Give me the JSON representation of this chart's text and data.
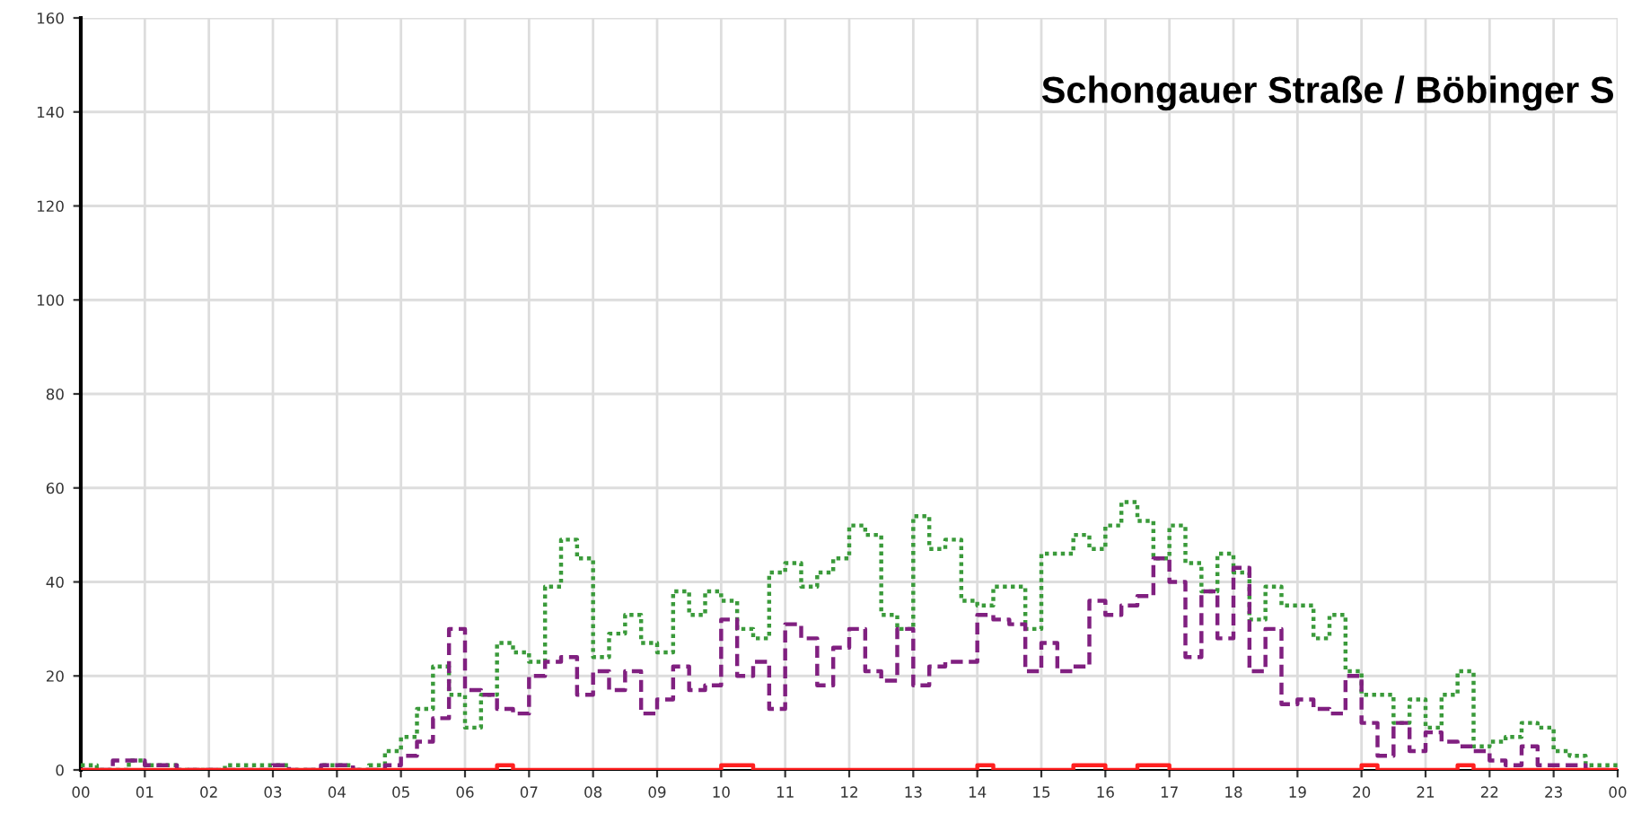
{
  "chart_data": {
    "type": "step",
    "title": "Schongauer Straße / Böbinger S",
    "x": [
      0,
      0.25,
      0.5,
      0.75,
      1,
      1.25,
      1.5,
      1.75,
      2,
      2.25,
      2.5,
      2.75,
      3,
      3.25,
      3.5,
      3.75,
      4,
      4.25,
      4.5,
      4.75,
      5,
      5.25,
      5.5,
      5.75,
      6,
      6.25,
      6.5,
      6.75,
      7,
      7.25,
      7.5,
      7.75,
      8,
      8.25,
      8.5,
      8.75,
      9,
      9.25,
      9.5,
      9.75,
      10,
      10.25,
      10.5,
      10.75,
      11,
      11.25,
      11.5,
      11.75,
      12,
      12.25,
      12.5,
      12.75,
      13,
      13.25,
      13.5,
      13.75,
      14,
      14.25,
      14.5,
      14.75,
      15,
      15.25,
      15.5,
      15.75,
      16,
      16.25,
      16.5,
      16.75,
      17,
      17.25,
      17.5,
      17.75,
      18,
      18.25,
      18.5,
      18.75,
      19,
      19.25,
      19.5,
      19.75,
      20,
      20.25,
      20.5,
      20.75,
      21,
      21.25,
      21.5,
      21.75,
      22,
      22.25,
      22.5,
      22.75,
      23,
      23.25,
      23.5,
      23.75,
      24
    ],
    "series": [
      {
        "color": "#3a9a3a",
        "line_style": "dotted",
        "values": [
          1,
          0,
          0,
          2,
          1,
          1,
          0,
          0,
          0,
          1,
          1,
          1,
          1,
          0,
          0,
          1,
          1,
          0,
          1,
          4,
          7,
          13,
          22,
          16,
          9,
          16,
          27,
          25,
          23,
          39,
          49,
          45,
          24,
          29,
          33,
          27,
          25,
          38,
          33,
          38,
          36,
          30,
          28,
          42,
          44,
          39,
          42,
          45,
          52,
          50,
          33,
          30,
          54,
          47,
          49,
          36,
          35,
          39,
          39,
          30,
          46,
          46,
          50,
          47,
          52,
          57,
          53,
          45,
          52,
          44,
          38,
          46,
          42,
          32,
          39,
          35,
          35,
          28,
          33,
          21,
          16,
          16,
          10,
          15,
          9,
          16,
          21,
          5,
          6,
          7,
          10,
          9,
          4,
          3,
          1,
          1,
          1
        ]
      },
      {
        "color": "#802080",
        "line_style": "dashed",
        "values": [
          0,
          0,
          2,
          2,
          1,
          1,
          0,
          0,
          0,
          0,
          0,
          0,
          1,
          0,
          0,
          1,
          1,
          0,
          0,
          1,
          3,
          6,
          11,
          30,
          17,
          16,
          13,
          12,
          20,
          23,
          24,
          16,
          21,
          17,
          21,
          12,
          15,
          22,
          17,
          18,
          32,
          20,
          23,
          13,
          31,
          28,
          18,
          26,
          30,
          21,
          19,
          30,
          18,
          22,
          23,
          23,
          33,
          32,
          31,
          21,
          27,
          21,
          22,
          36,
          33,
          35,
          37,
          45,
          40,
          24,
          38,
          28,
          43,
          21,
          30,
          14,
          15,
          13,
          12,
          20,
          10,
          3,
          10,
          4,
          8,
          6,
          5,
          4,
          2,
          1,
          5,
          1,
          1,
          1,
          0,
          0,
          0
        ]
      },
      {
        "color": "#ff2020",
        "line_style": "solid",
        "values": [
          0,
          0,
          0,
          0,
          0,
          0,
          0,
          0,
          0,
          0,
          0,
          0,
          0,
          0,
          0,
          0,
          0,
          0,
          0,
          0,
          0,
          0,
          0,
          0,
          0,
          0,
          1,
          0,
          0,
          0,
          0,
          0,
          0,
          0,
          0,
          0,
          0,
          0,
          0,
          0,
          1,
          1,
          0,
          0,
          0,
          0,
          0,
          0,
          0,
          0,
          0,
          0,
          0,
          0,
          0,
          0,
          1,
          0,
          0,
          0,
          0,
          0,
          1,
          1,
          0,
          0,
          1,
          1,
          0,
          0,
          0,
          0,
          0,
          0,
          0,
          0,
          0,
          0,
          0,
          0,
          1,
          0,
          0,
          0,
          0,
          0,
          1,
          0,
          0,
          0,
          0,
          0,
          0,
          0,
          0,
          0,
          0
        ]
      }
    ],
    "xlim": [
      0,
      24
    ],
    "xticks": [
      {
        "value": 0,
        "label": "00"
      },
      {
        "value": 1,
        "label": "01"
      },
      {
        "value": 2,
        "label": "02"
      },
      {
        "value": 3,
        "label": "03"
      },
      {
        "value": 4,
        "label": "04"
      },
      {
        "value": 5,
        "label": "05"
      },
      {
        "value": 6,
        "label": "06"
      },
      {
        "value": 7,
        "label": "07"
      },
      {
        "value": 8,
        "label": "08"
      },
      {
        "value": 9,
        "label": "09"
      },
      {
        "value": 10,
        "label": "10"
      },
      {
        "value": 11,
        "label": "11"
      },
      {
        "value": 12,
        "label": "12"
      },
      {
        "value": 13,
        "label": "13"
      },
      {
        "value": 14,
        "label": "14"
      },
      {
        "value": 15,
        "label": "15"
      },
      {
        "value": 16,
        "label": "16"
      },
      {
        "value": 17,
        "label": "17"
      },
      {
        "value": 18,
        "label": "18"
      },
      {
        "value": 19,
        "label": "19"
      },
      {
        "value": 20,
        "label": "20"
      },
      {
        "value": 21,
        "label": "21"
      },
      {
        "value": 22,
        "label": "22"
      },
      {
        "value": 23,
        "label": "23"
      },
      {
        "value": 24,
        "label": "00"
      }
    ],
    "ylim": [
      0,
      160
    ],
    "yticks": [
      0,
      20,
      40,
      60,
      80,
      100,
      120,
      140,
      160
    ],
    "grid": true
  }
}
